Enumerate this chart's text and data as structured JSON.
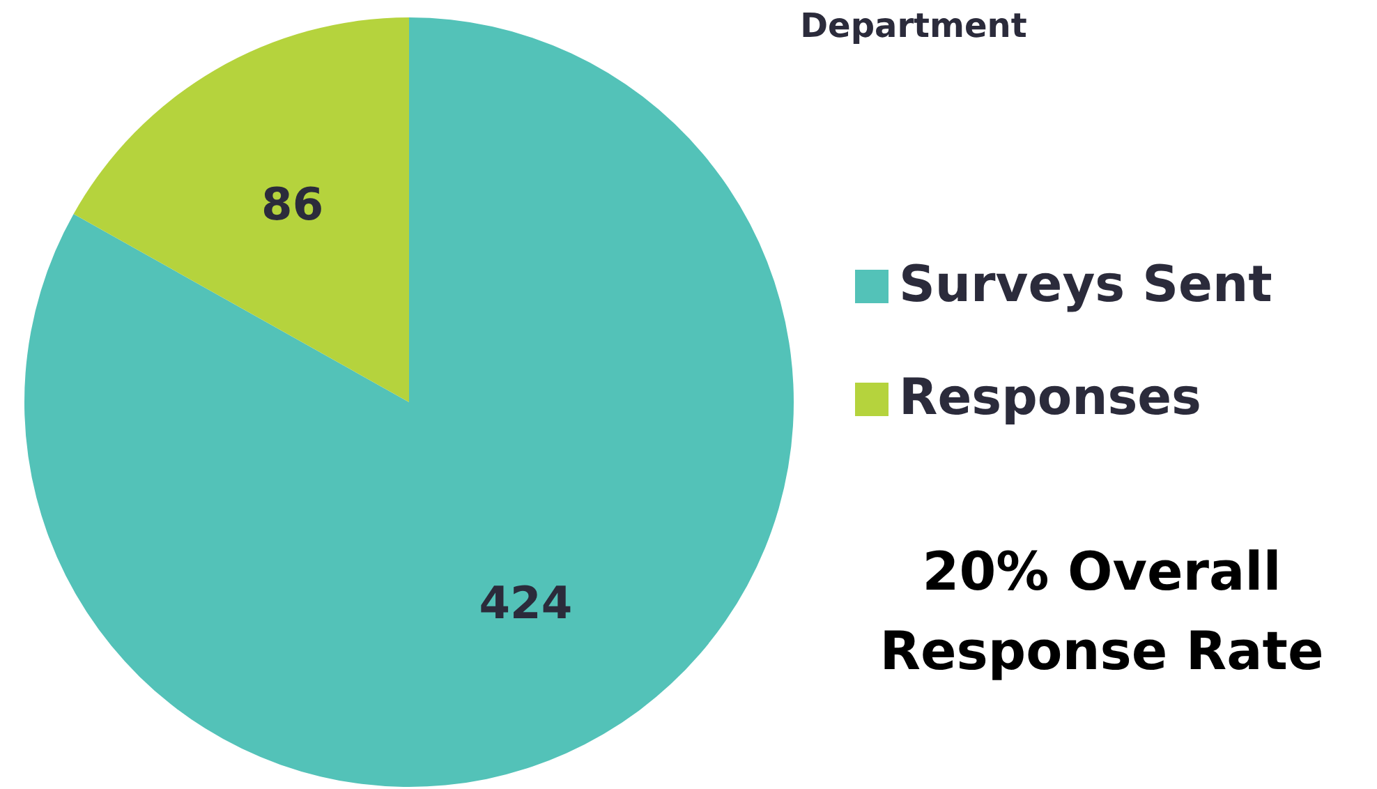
{
  "chart_data": {
    "type": "pie",
    "title": "Department",
    "categories": [
      "Surveys Sent",
      "Responses"
    ],
    "values": [
      424,
      86
    ],
    "colors": [
      "#53c2b8",
      "#b5d33d"
    ],
    "data_labels": true,
    "legend": "right",
    "annotations": [
      "20% Overall\nResponse Rate"
    ]
  }
}
